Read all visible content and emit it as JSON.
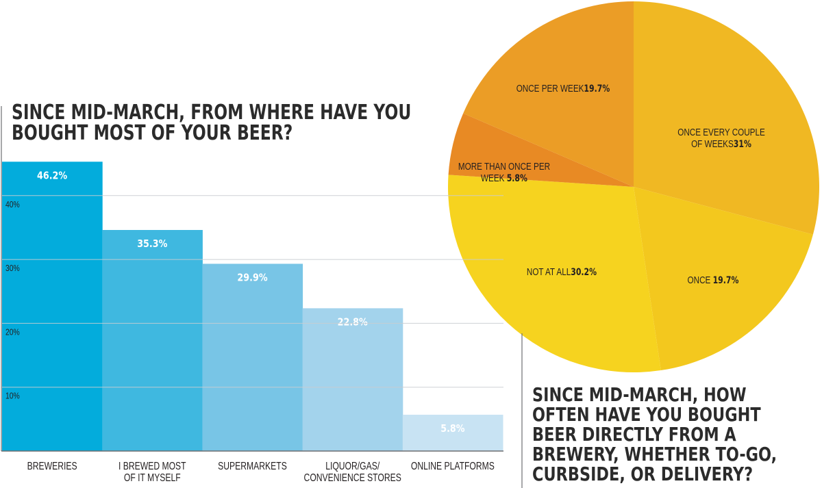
{
  "chart_data": [
    {
      "type": "bar",
      "title": "SINCE MID-MARCH, FROM WHERE HAVE YOU BOUGHT MOST OF YOUR BEER?",
      "title_lines": [
        "SINCE MID-MARCH, FROM WHERE HAVE YOU",
        "BOUGHT MOST OF YOUR BEER?"
      ],
      "categories": [
        "BREWERIES",
        "I BREWED MOST OF IT MYSELF",
        "SUPERMARKETS",
        "LIQUOR/GAS/ CONVENIENCE STORES",
        "ONLINE PLATFORMS"
      ],
      "category_lines": [
        [
          "BREWERIES"
        ],
        [
          "I BREWED MOST",
          "OF IT MYSELF"
        ],
        [
          "SUPERMARKETS"
        ],
        [
          "LIQUOR/GAS/",
          "CONVENIENCE STORES"
        ],
        [
          "ONLINE PLATFORMS"
        ]
      ],
      "values": [
        46.2,
        35.3,
        29.9,
        22.8,
        5.8
      ],
      "value_labels": [
        "46.2%",
        "35.3%",
        "29.9%",
        "22.8%",
        "5.8%"
      ],
      "colors": [
        "#03acdc",
        "#3fb8e0",
        "#78c5e6",
        "#a3d3ec",
        "#c8e3f3"
      ],
      "yticks": [
        10,
        20,
        30,
        40
      ],
      "ytick_labels": [
        "10%",
        "20%",
        "30%",
        "40%"
      ],
      "ylim": [
        0,
        50
      ],
      "xlabel": "",
      "ylabel": "",
      "grid": true
    },
    {
      "type": "pie",
      "title": "SINCE MID-MARCH, HOW OFTEN HAVE YOU BOUGHT BEER DIRECTLY FROM A BREWERY, WHETHER TO-GO, CURBSIDE, OR DELIVERY?",
      "title_lines": [
        "SINCE MID-MARCH, HOW",
        "OFTEN HAVE YOU BOUGHT",
        "BEER DIRECTLY FROM A",
        "BREWERY, WHETHER TO-GO,",
        "CURBSIDE, OR DELIVERY?"
      ],
      "slices": [
        {
          "label": "ONCE EVERY COUPLE OF WEEKS",
          "label_lines": [
            "ONCE EVERY COUPLE",
            "OF WEEKS"
          ],
          "value": 31,
          "value_label": "31%",
          "color": "#f0b823"
        },
        {
          "label": "ONCE",
          "label_lines": [
            "ONCE "
          ],
          "value": 19.7,
          "value_label": "19.7%",
          "color": "#f3c81e"
        },
        {
          "label": "NOT AT ALL",
          "label_lines": [
            "NOT AT ALL"
          ],
          "value": 30.2,
          "value_label": "30.2%",
          "color": "#f6d31f"
        },
        {
          "label": "MORE THAN ONCE PER WEEK",
          "label_lines": [
            "MORE THAN ONCE PER",
            "WEEK "
          ],
          "value": 5.8,
          "value_label": "5.8%",
          "color": "#e88a24"
        },
        {
          "label": "ONCE PER WEEK",
          "label_lines": [
            "ONCE PER WEEK"
          ],
          "value": 19.7,
          "value_label": "19.7%",
          "color": "#eb9d26"
        }
      ]
    }
  ],
  "colors": {
    "text": "#231f20",
    "title": "#2b2b2b",
    "gridline": "#c9ccd0",
    "axis": "#6d6e71",
    "bar_label": "#ffffff"
  }
}
